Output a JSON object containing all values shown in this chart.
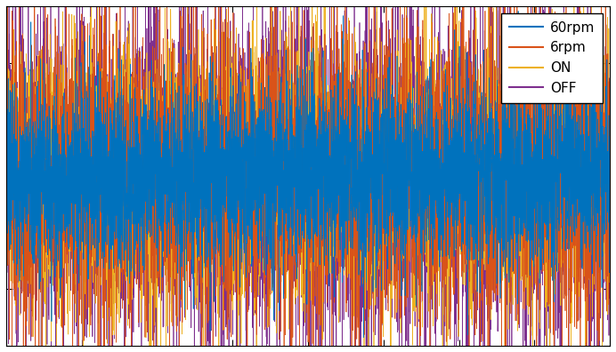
{
  "title": "",
  "xlabel": "",
  "ylabel": "",
  "xlim": [
    0,
    1
  ],
  "ylim": [
    -1.5,
    1.5
  ],
  "colors": {
    "60rpm": "#0072bd",
    "6rpm": "#d95319",
    "ON": "#edb120",
    "OFF": "#7e2f8e"
  },
  "legend_labels": [
    "60rpm",
    "6rpm",
    "ON",
    "OFF"
  ],
  "background": "#ffffff",
  "n_samples": 5000,
  "grid": false
}
